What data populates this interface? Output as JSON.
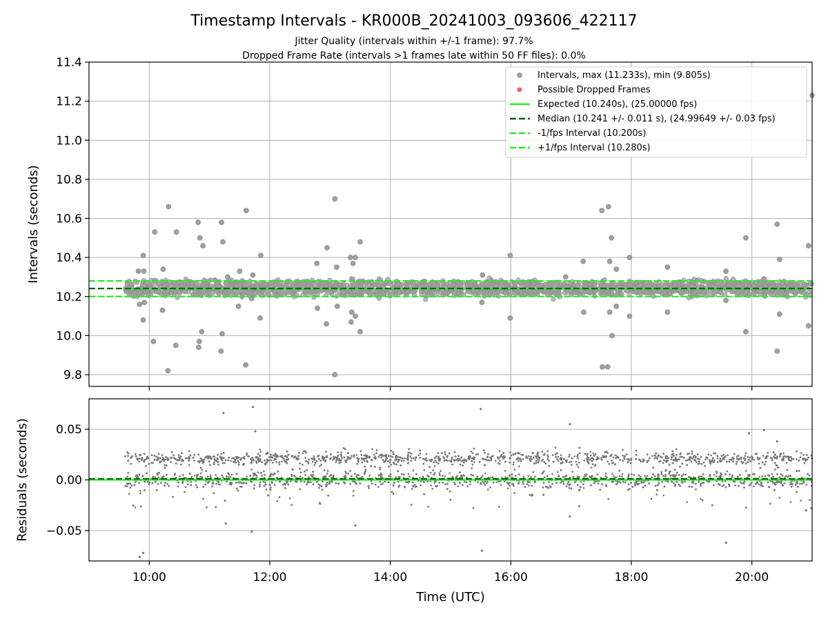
{
  "figure": {
    "title": "Timestamp Intervals - KR000B_20241003_093606_422117",
    "subtitle1": "Jitter Quality (intervals within +/-1 frame): 97.7%",
    "subtitle2": "Dropped Frame Rate (intervals >1 frames late within 50 FF files): 0.0%"
  },
  "colors": {
    "points": "#a0a0a0",
    "points_edge": "#8c8c8c",
    "dropped": "#ee6666",
    "expected": "#22ee22",
    "median": "#006400",
    "interval_bounds": "#22ee22",
    "residuals": "#777777",
    "grid": "#b0b0b0"
  },
  "chart_data": [
    {
      "type": "scatter",
      "title": "Timestamp Intervals - KR000B_20241003_093606_422117",
      "xlabel": "",
      "ylabel": "Intervals (seconds)",
      "xlim_hours": [
        9.0,
        21.0
      ],
      "ylim": [
        9.74,
        11.4
      ],
      "yticks": [
        9.8,
        10.0,
        10.2,
        10.4,
        10.6,
        10.8,
        11.0,
        11.2,
        11.4
      ],
      "ytick_labels": [
        "9.8",
        "10.0",
        "10.2",
        "10.4",
        "10.6",
        "10.8",
        "11.0",
        "11.2",
        "11.4"
      ],
      "grid": true,
      "legend_position": "top-right",
      "legend": [
        {
          "label": "Intervals, max (11.233s), min (9.805s)",
          "kind": "point",
          "color": "#a0a0a0"
        },
        {
          "label": "Possible Dropped Frames",
          "kind": "point",
          "color": "#ee6666"
        },
        {
          "label": "Expected (10.240s), (25.00000 fps)",
          "kind": "line",
          "color": "#22ee22"
        },
        {
          "label": "Median (10.241 +/- 0.011 s), (24.99649 +/- 0.03 fps)",
          "kind": "dashed",
          "color": "#006400"
        },
        {
          "label": "-1/fps Interval (10.200s)",
          "kind": "dashed",
          "color": "#22ee22"
        },
        {
          "label": "+1/fps Interval (10.280s)",
          "kind": "dashed",
          "color": "#22ee22"
        }
      ],
      "reference_lines": {
        "expected": 10.24,
        "median": 10.241,
        "lower": 10.2,
        "upper": 10.28
      },
      "band": {
        "x_start_hours": 9.6,
        "x_end_hours": 21.0,
        "low": 10.2,
        "high": 10.28
      },
      "outliers": [
        {
          "x": 9.82,
          "y": 10.33
        },
        {
          "x": 9.9,
          "y": 10.41
        },
        {
          "x": 9.91,
          "y": 10.33
        },
        {
          "x": 9.84,
          "y": 10.16
        },
        {
          "x": 9.92,
          "y": 10.17
        },
        {
          "x": 9.9,
          "y": 10.08
        },
        {
          "x": 10.09,
          "y": 10.53
        },
        {
          "x": 10.07,
          "y": 9.97
        },
        {
          "x": 10.23,
          "y": 10.34
        },
        {
          "x": 10.22,
          "y": 10.13
        },
        {
          "x": 10.32,
          "y": 10.66
        },
        {
          "x": 10.31,
          "y": 9.82
        },
        {
          "x": 10.45,
          "y": 10.53
        },
        {
          "x": 10.44,
          "y": 9.95
        },
        {
          "x": 10.81,
          "y": 10.58
        },
        {
          "x": 10.84,
          "y": 10.5
        },
        {
          "x": 10.89,
          "y": 10.46
        },
        {
          "x": 10.87,
          "y": 10.02
        },
        {
          "x": 10.82,
          "y": 9.94
        },
        {
          "x": 10.83,
          "y": 9.97
        },
        {
          "x": 11.2,
          "y": 10.58
        },
        {
          "x": 11.22,
          "y": 10.48
        },
        {
          "x": 11.21,
          "y": 10.01
        },
        {
          "x": 11.19,
          "y": 9.92
        },
        {
          "x": 11.3,
          "y": 10.3
        },
        {
          "x": 11.5,
          "y": 10.33
        },
        {
          "x": 11.48,
          "y": 10.15
        },
        {
          "x": 11.61,
          "y": 10.64
        },
        {
          "x": 11.6,
          "y": 9.85
        },
        {
          "x": 11.72,
          "y": 10.31
        },
        {
          "x": 11.7,
          "y": 10.19
        },
        {
          "x": 11.85,
          "y": 10.41
        },
        {
          "x": 11.84,
          "y": 10.09
        },
        {
          "x": 12.78,
          "y": 10.37
        },
        {
          "x": 12.79,
          "y": 10.14
        },
        {
          "x": 12.95,
          "y": 10.45
        },
        {
          "x": 12.94,
          "y": 10.06
        },
        {
          "x": 13.08,
          "y": 10.7
        },
        {
          "x": 13.08,
          "y": 9.8
        },
        {
          "x": 13.11,
          "y": 10.35
        },
        {
          "x": 13.12,
          "y": 10.15
        },
        {
          "x": 13.34,
          "y": 10.4
        },
        {
          "x": 13.38,
          "y": 10.37
        },
        {
          "x": 13.42,
          "y": 10.4
        },
        {
          "x": 13.36,
          "y": 10.12
        },
        {
          "x": 13.42,
          "y": 10.1
        },
        {
          "x": 13.35,
          "y": 10.07
        },
        {
          "x": 13.5,
          "y": 10.02
        },
        {
          "x": 13.5,
          "y": 10.48
        },
        {
          "x": 15.53,
          "y": 10.31
        },
        {
          "x": 15.52,
          "y": 10.17
        },
        {
          "x": 15.99,
          "y": 10.41
        },
        {
          "x": 15.99,
          "y": 10.09
        },
        {
          "x": 16.91,
          "y": 10.3
        },
        {
          "x": 17.2,
          "y": 10.38
        },
        {
          "x": 17.21,
          "y": 10.12
        },
        {
          "x": 17.51,
          "y": 10.64
        },
        {
          "x": 17.52,
          "y": 9.84
        },
        {
          "x": 17.62,
          "y": 10.66
        },
        {
          "x": 17.61,
          "y": 9.84
        },
        {
          "x": 17.67,
          "y": 10.5
        },
        {
          "x": 17.64,
          "y": 10.38
        },
        {
          "x": 17.64,
          "y": 10.12
        },
        {
          "x": 17.68,
          "y": 10.0
        },
        {
          "x": 17.75,
          "y": 10.34
        },
        {
          "x": 17.75,
          "y": 10.15
        },
        {
          "x": 17.97,
          "y": 10.4
        },
        {
          "x": 17.97,
          "y": 10.1
        },
        {
          "x": 18.6,
          "y": 10.35
        },
        {
          "x": 18.6,
          "y": 10.12
        },
        {
          "x": 19.57,
          "y": 10.33
        },
        {
          "x": 19.57,
          "y": 10.18
        },
        {
          "x": 19.9,
          "y": 10.5
        },
        {
          "x": 19.9,
          "y": 10.02
        },
        {
          "x": 20.2,
          "y": 10.29
        },
        {
          "x": 20.42,
          "y": 10.57
        },
        {
          "x": 20.42,
          "y": 9.92
        },
        {
          "x": 20.46,
          "y": 10.39
        },
        {
          "x": 20.46,
          "y": 10.11
        },
        {
          "x": 20.94,
          "y": 10.46
        },
        {
          "x": 20.94,
          "y": 10.05
        },
        {
          "x": 21.0,
          "y": 11.23
        }
      ]
    },
    {
      "type": "scatter",
      "xlabel": "Time (UTC)",
      "ylabel": "Residuals (seconds)",
      "xlim_hours": [
        9.0,
        21.0
      ],
      "xticks_hours": [
        10,
        12,
        14,
        16,
        18,
        20
      ],
      "xtick_labels": [
        "10:00",
        "12:00",
        "14:00",
        "16:00",
        "18:00",
        "20:00"
      ],
      "ylim": [
        -0.08,
        0.08
      ],
      "yticks": [
        -0.05,
        0.0,
        0.05
      ],
      "ytick_labels": [
        "−0.05",
        "0.00",
        "0.05"
      ],
      "grid": true,
      "reference_lines": {
        "expected": 0.0,
        "median": 0.001
      },
      "clusters": [
        {
          "center": 0.021,
          "spread": 0.003
        },
        {
          "center": 0.0,
          "spread": 0.004
        }
      ],
      "outliers": [
        {
          "x": 9.84,
          "y": -0.076
        },
        {
          "x": 9.9,
          "y": -0.072
        },
        {
          "x": 11.23,
          "y": 0.066
        },
        {
          "x": 11.72,
          "y": 0.072
        },
        {
          "x": 11.76,
          "y": 0.048
        },
        {
          "x": 11.27,
          "y": -0.043
        },
        {
          "x": 11.7,
          "y": -0.051
        },
        {
          "x": 13.42,
          "y": -0.045
        },
        {
          "x": 15.5,
          "y": 0.07
        },
        {
          "x": 15.52,
          "y": -0.07
        },
        {
          "x": 16.98,
          "y": 0.055
        },
        {
          "x": 16.98,
          "y": -0.036
        },
        {
          "x": 19.57,
          "y": -0.062
        },
        {
          "x": 19.95,
          "y": 0.046
        },
        {
          "x": 20.2,
          "y": 0.049
        },
        {
          "x": 20.42,
          "y": 0.038
        },
        {
          "x": 20.9,
          "y": -0.03
        }
      ]
    }
  ]
}
